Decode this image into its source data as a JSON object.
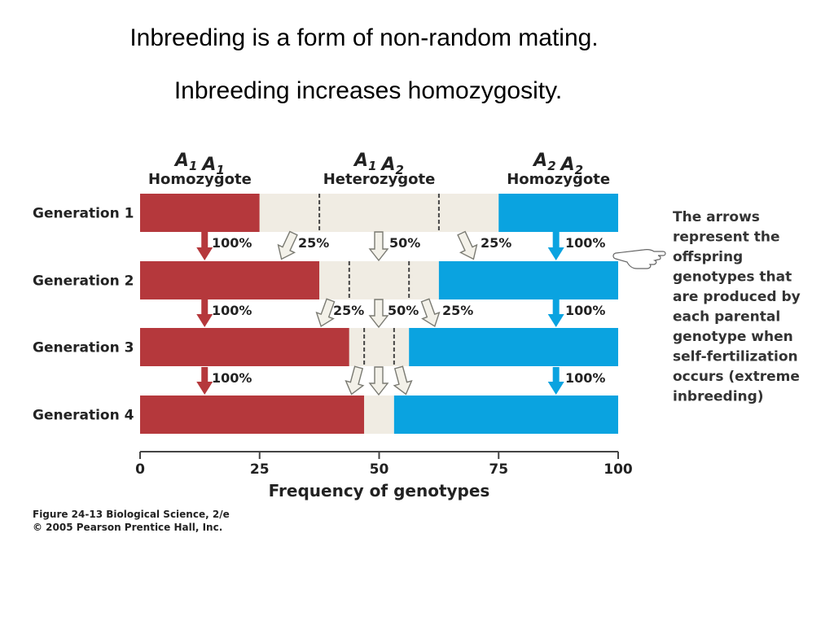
{
  "slide": {
    "title_line1": "Inbreeding is a form of non-random mating.",
    "title_line2": "Inbreeding increases homozygosity."
  },
  "chart_data": {
    "type": "bar",
    "stacked": true,
    "orientation": "horizontal",
    "categories": [
      "Generation 1",
      "Generation 2",
      "Generation 3",
      "Generation 4"
    ],
    "series": [
      {
        "name": "A1 A1 Homozygote",
        "genotype": "A1 A1",
        "subtitle": "Homozygote",
        "values": [
          25,
          37.5,
          43.75,
          46.875
        ],
        "color": "#b5383c"
      },
      {
        "name": "A1 A2 Heterozygote",
        "genotype": "A1 A2",
        "subtitle": "Heterozygote",
        "values": [
          50,
          25,
          12.5,
          6.25
        ],
        "color": "#f0ece3"
      },
      {
        "name": "A2 A2 Homozygote",
        "genotype": "A2 A2",
        "subtitle": "Homozygote",
        "values": [
          25,
          37.5,
          43.75,
          46.875
        ],
        "color": "#0aa3e0"
      }
    ],
    "xlabel": "Frequency of genotypes",
    "xlim": [
      0,
      100
    ],
    "xticks": [
      0,
      25,
      50,
      75,
      100
    ],
    "arrows": [
      {
        "between": [
          1,
          2
        ],
        "labels": [
          "100%",
          "25%",
          "50%",
          "25%",
          "100%"
        ]
      },
      {
        "between": [
          2,
          3
        ],
        "labels": [
          "100%",
          "25%",
          "50%",
          "25%",
          "100%"
        ]
      },
      {
        "between": [
          3,
          4
        ],
        "labels": [
          "100%",
          "100%"
        ]
      }
    ],
    "annotation": [
      "The arrows",
      "represent the",
      "offspring",
      "genotypes that",
      "are produced by",
      "each parental",
      "genotype when",
      "self-fertilization",
      "occurs (extreme",
      "inbreeding)"
    ],
    "credit": [
      "Figure 24-13  Biological Science, 2/e",
      "© 2005 Pearson Prentice Hall, Inc."
    ]
  }
}
